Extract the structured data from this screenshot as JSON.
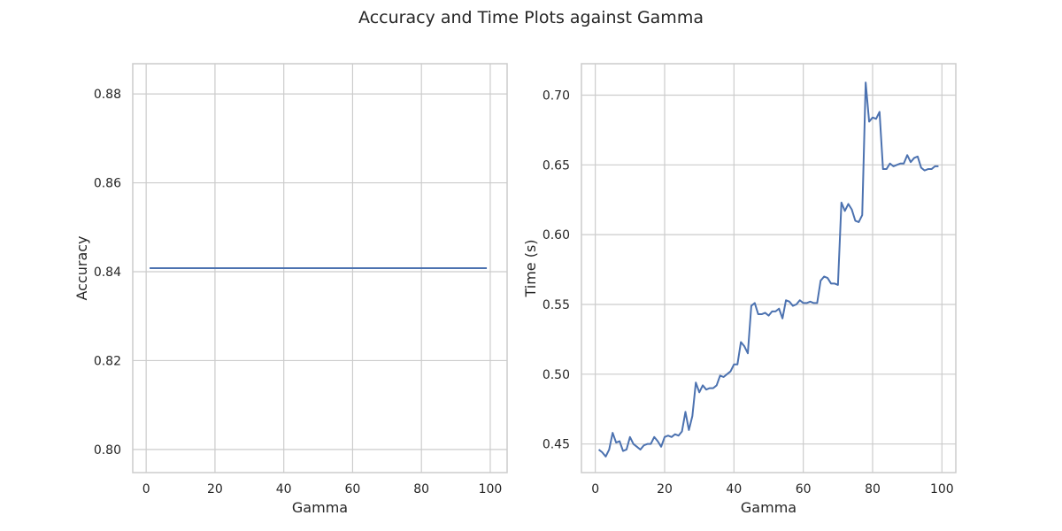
{
  "figure": {
    "suptitle": "Accuracy and Time Plots against Gamma"
  },
  "colors": {
    "series": "#4c72b0",
    "grid": "#cccccc",
    "text": "#262626"
  },
  "chart_data": [
    {
      "type": "line",
      "title": "",
      "xlabel": "Gamma",
      "ylabel": "Accuracy",
      "grid": true,
      "xlim": [
        -3.9,
        104.9
      ],
      "ylim": [
        0.7948,
        0.8868
      ],
      "xticks": [
        0,
        20,
        40,
        60,
        80,
        100
      ],
      "xtick_labels": [
        "0",
        "20",
        "40",
        "60",
        "80",
        "100"
      ],
      "yticks": [
        0.8,
        0.82,
        0.84,
        0.86,
        0.88
      ],
      "ytick_labels": [
        "0.80",
        "0.82",
        "0.84",
        "0.86",
        "0.88"
      ],
      "series": [
        {
          "name": "Accuracy",
          "x": [
            1,
            99
          ],
          "y": [
            0.8408,
            0.8408
          ]
        }
      ]
    },
    {
      "type": "line",
      "title": "",
      "xlabel": "Gamma",
      "ylabel": "Time (s)",
      "grid": true,
      "xlim": [
        -4,
        104
      ],
      "ylim": [
        0.4295,
        0.7225
      ],
      "xticks": [
        0,
        20,
        40,
        60,
        80,
        100
      ],
      "xtick_labels": [
        "0",
        "20",
        "40",
        "60",
        "80",
        "100"
      ],
      "yticks": [
        0.45,
        0.5,
        0.55,
        0.6,
        0.65,
        0.7
      ],
      "ytick_labels": [
        "0.45",
        "0.50",
        "0.55",
        "0.60",
        "0.65",
        "0.70"
      ],
      "series": [
        {
          "name": "Time",
          "x": [
            1,
            2,
            3,
            4,
            5,
            6,
            7,
            8,
            9,
            10,
            11,
            12,
            13,
            14,
            15,
            16,
            17,
            18,
            19,
            20,
            21,
            22,
            23,
            24,
            25,
            26,
            27,
            28,
            29,
            30,
            31,
            32,
            33,
            34,
            35,
            36,
            37,
            38,
            39,
            40,
            41,
            42,
            43,
            44,
            45,
            46,
            47,
            48,
            49,
            50,
            51,
            52,
            53,
            54,
            55,
            56,
            57,
            58,
            59,
            60,
            61,
            62,
            63,
            64,
            65,
            66,
            67,
            68,
            69,
            70,
            71,
            72,
            73,
            74,
            75,
            76,
            77,
            78,
            79,
            80,
            81,
            82,
            83,
            84,
            85,
            86,
            87,
            88,
            89,
            90,
            91,
            92,
            93,
            94,
            95,
            96,
            97,
            98,
            99
          ],
          "y": [
            0.446,
            0.444,
            0.441,
            0.446,
            0.458,
            0.451,
            0.452,
            0.445,
            0.446,
            0.455,
            0.45,
            0.448,
            0.446,
            0.449,
            0.45,
            0.45,
            0.455,
            0.452,
            0.448,
            0.455,
            0.456,
            0.455,
            0.457,
            0.456,
            0.459,
            0.473,
            0.46,
            0.47,
            0.494,
            0.487,
            0.492,
            0.489,
            0.49,
            0.49,
            0.492,
            0.499,
            0.498,
            0.5,
            0.502,
            0.507,
            0.507,
            0.523,
            0.52,
            0.515,
            0.549,
            0.551,
            0.543,
            0.543,
            0.544,
            0.542,
            0.545,
            0.545,
            0.547,
            0.54,
            0.553,
            0.552,
            0.549,
            0.55,
            0.553,
            0.551,
            0.551,
            0.552,
            0.551,
            0.551,
            0.567,
            0.57,
            0.569,
            0.565,
            0.565,
            0.564,
            0.623,
            0.617,
            0.622,
            0.618,
            0.61,
            0.609,
            0.614,
            0.709,
            0.681,
            0.684,
            0.683,
            0.688,
            0.647,
            0.647,
            0.651,
            0.649,
            0.65,
            0.651,
            0.651,
            0.657,
            0.652,
            0.655,
            0.656,
            0.648,
            0.646,
            0.647,
            0.647,
            0.649,
            0.649
          ]
        }
      ]
    }
  ]
}
